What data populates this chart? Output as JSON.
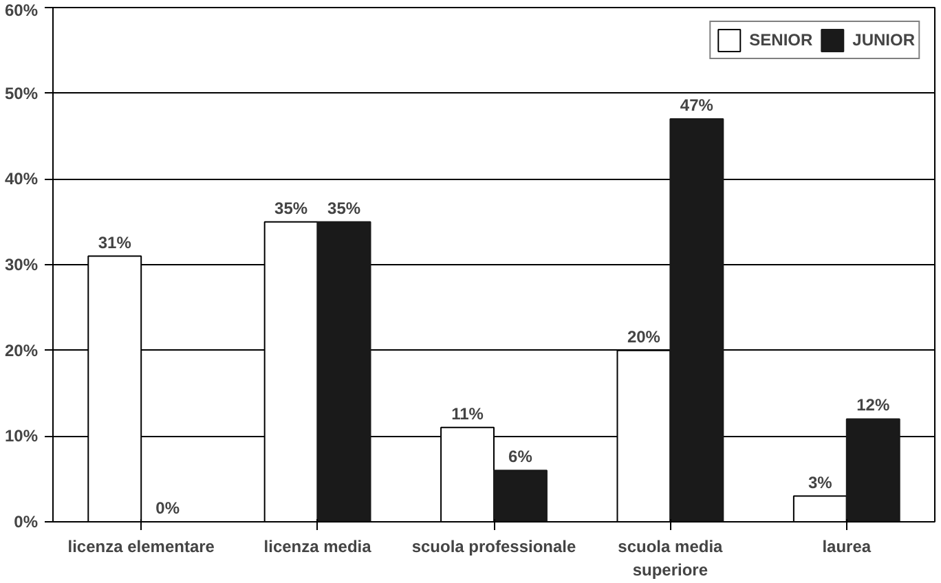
{
  "chart_data": {
    "type": "bar",
    "categories": [
      "licenza elementare",
      "licenza media",
      "scuola professionale",
      "scuola media superiore",
      "laurea"
    ],
    "series": [
      {
        "name": "SENIOR",
        "color": "#ffffff",
        "values": [
          31,
          35,
          11,
          20,
          3
        ],
        "value_labels": [
          "31%",
          "35%",
          "11%",
          "20%",
          "3%"
        ]
      },
      {
        "name": "JUNIOR",
        "color": "#1a1a1a",
        "values": [
          0,
          35,
          6,
          47,
          12
        ],
        "value_labels": [
          "0%",
          "35%",
          "6%",
          "47%",
          "12%"
        ]
      }
    ],
    "ylim": [
      0,
      60
    ],
    "yticks": [
      {
        "value": 0,
        "label": "0%"
      },
      {
        "value": 10,
        "label": "10%"
      },
      {
        "value": 20,
        "label": "20%"
      },
      {
        "value": 30,
        "label": "30%"
      },
      {
        "value": 40,
        "label": "40%"
      },
      {
        "value": 50,
        "label": "50%"
      },
      {
        "value": 60,
        "label": "60%"
      }
    ],
    "grid": "y",
    "legend": "top right"
  }
}
